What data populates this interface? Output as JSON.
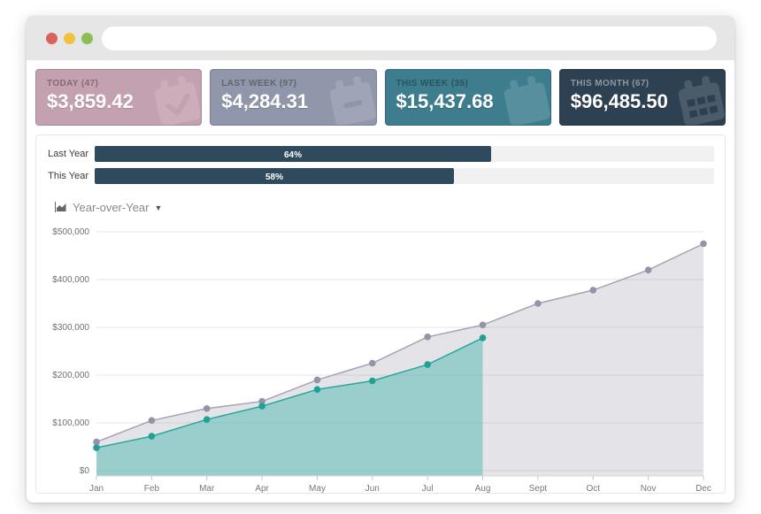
{
  "window": {
    "traffic_lights": [
      "#d9605c",
      "#f2c23d",
      "#8bbf56"
    ],
    "url_value": "",
    "url_placeholder": ""
  },
  "cards": [
    {
      "label": "TODAY (47)",
      "value": "$3,859.42",
      "icon": "calendar-check-icon",
      "bg": "#c4a1b0"
    },
    {
      "label": "LAST WEEK (97)",
      "value": "$4,284.31",
      "icon": "calendar-minus-icon",
      "bg": "#9097ab"
    },
    {
      "label": "THIS WEEK (35)",
      "value": "$15,437.68",
      "icon": "calendar-icon",
      "bg": "#3d7d8e"
    },
    {
      "label": "THIS MONTH (67)",
      "value": "$96,485.50",
      "icon": "calendar-grid-icon",
      "bg": "#2d4152"
    }
  ],
  "progress": {
    "bar_color": "#2e4a5c",
    "track_color": "#f1f1f2",
    "rows": [
      {
        "label": "Last Year",
        "percent": 64,
        "percent_label": "64%"
      },
      {
        "label": "This Year",
        "percent": 58,
        "percent_label": "58%"
      }
    ]
  },
  "chart_controls": {
    "label": "Year-over-Year",
    "icon": "area-chart-icon",
    "caret_icon": "chevron-down-icon",
    "caret_glyph": "▼"
  },
  "chart_data": {
    "type": "area",
    "title": "Year-over-Year",
    "x": [
      "Jan",
      "Feb",
      "Mar",
      "Apr",
      "May",
      "Jun",
      "Jul",
      "Aug",
      "Sept",
      "Oct",
      "Nov",
      "Dec"
    ],
    "series": [
      {
        "name": "Last Year",
        "line_color": "#a5a3b6",
        "point_color": "#9494a6",
        "fill_color": "rgba(144,144,164,0.25)",
        "values": [
          60000,
          105000,
          130000,
          145000,
          190000,
          225000,
          280000,
          305000,
          350000,
          378000,
          420000,
          475000
        ]
      },
      {
        "name": "This Year",
        "line_color": "#2aa79b",
        "point_color": "#1fa193",
        "fill_color": "rgba(80,186,175,0.5)",
        "values": [
          48000,
          72000,
          107000,
          135000,
          170000,
          188000,
          222000,
          278000
        ]
      }
    ],
    "ylim": [
      0,
      500000
    ],
    "ytick_labels": [
      "$0",
      "$100,000",
      "$200,000",
      "$300,000",
      "$400,000",
      "$500,000"
    ],
    "grid": true,
    "legend": "none"
  }
}
